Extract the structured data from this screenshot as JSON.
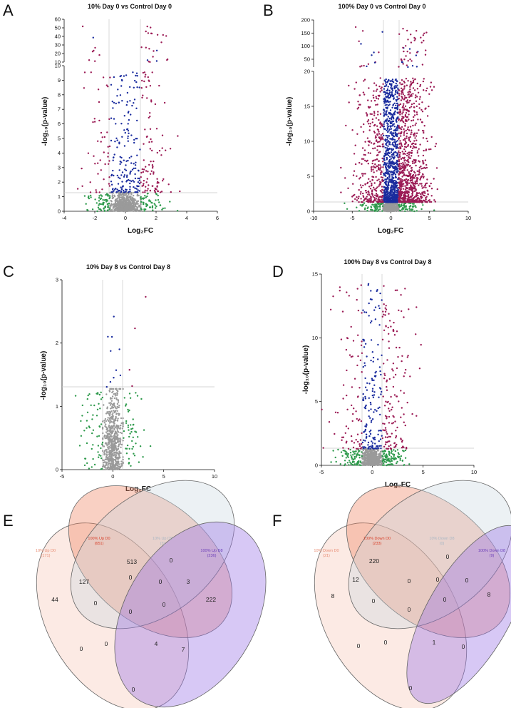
{
  "figure": {
    "panels": [
      "A",
      "B",
      "C",
      "D",
      "E",
      "F"
    ],
    "colors": {
      "up": "#9b1b55",
      "down": "#1a2c9e",
      "ns_fc": "#2e9a4c",
      "ns": "#9a9a9a"
    }
  },
  "chart_data": [
    {
      "id": "A",
      "type": "scatter",
      "title": "10% Day 0 vs Control Day 0",
      "xlabel": "Log₂FC",
      "ylabel": "-log₁₀(p-value)",
      "xlim": [
        -4,
        6
      ],
      "xticks": [
        "-4",
        "-2",
        "0",
        "2",
        "4",
        "6"
      ],
      "ylim": [
        0,
        10
      ],
      "yticks": [
        "0",
        "1",
        "2",
        "3",
        "4",
        "5",
        "6",
        "7",
        "8",
        "9",
        "10"
      ],
      "upper_ylim": [
        10,
        60
      ],
      "upper_yticks": [
        "10",
        "20",
        "30",
        "40",
        "50",
        "60"
      ],
      "fc_threshold": 1,
      "p_threshold": 1.3,
      "counts": {
        "ns": 700,
        "ns_fc": 120,
        "down": 180,
        "up": 150,
        "high": 30
      }
    },
    {
      "id": "B",
      "type": "scatter",
      "title": "100% Day 0 vs Control Day 0",
      "xlabel": "Log₂FC",
      "ylabel": "-log₁₀(p-value)",
      "xlim": [
        -10,
        10
      ],
      "xticks": [
        "-10",
        "-5",
        "0",
        "5",
        "10"
      ],
      "ylim": [
        0,
        20
      ],
      "yticks": [
        "0",
        "5",
        "10",
        "15",
        "20"
      ],
      "upper_ylim": [
        20,
        200
      ],
      "upper_yticks": [
        "50",
        "100",
        "150",
        "200"
      ],
      "fc_threshold": 1,
      "p_threshold": 1.3,
      "counts": {
        "ns": 900,
        "ns_fc": 120,
        "down": 900,
        "up": 1200,
        "high": 60
      }
    },
    {
      "id": "C",
      "type": "scatter",
      "title": "10% Day 8 vs Control Day 8",
      "xlabel": "Log₂FC",
      "ylabel": "-log₁₀(p-value)",
      "xlim": [
        -5,
        10
      ],
      "xticks": [
        "-5",
        "0",
        "5",
        "10"
      ],
      "ylim": [
        0,
        3
      ],
      "yticks": [
        "0",
        "1",
        "2",
        "3"
      ],
      "fc_threshold": 1,
      "p_threshold": 1.3,
      "counts": {
        "ns": 650,
        "ns_fc": 110,
        "down": 10,
        "up": 4
      }
    },
    {
      "id": "D",
      "type": "scatter",
      "title": "100% Day 8 vs Control Day 8",
      "xlabel": "Log₂FC",
      "ylabel": "-log₁₀(p-value)",
      "xlim": [
        -5,
        10
      ],
      "xticks": [
        "-5",
        "0",
        "5",
        "10"
      ],
      "ylim": [
        0,
        15
      ],
      "yticks": [
        "0",
        "5",
        "10",
        "15"
      ],
      "fc_threshold": 1,
      "p_threshold": 1.3,
      "counts": {
        "ns": 700,
        "ns_fc": 180,
        "down": 160,
        "up": 230
      }
    }
  ],
  "venn": [
    {
      "id": "E",
      "sets": [
        {
          "label": "10% Up D0",
          "count": "(171)",
          "color": "#f0a08a"
        },
        {
          "label": "100% Up D0",
          "count": "(651)",
          "color": "#e0553a"
        },
        {
          "label": "10% Up D8",
          "count": "(3)",
          "color": "#a9b7c4"
        },
        {
          "label": "100% Up D8",
          "count": "(236)",
          "color": "#7040c0"
        }
      ],
      "regions": [
        "44",
        "513",
        "0",
        "222",
        "127",
        "0",
        "0",
        "3",
        "0",
        "0",
        "0",
        "0",
        "0",
        "7",
        "4",
        "0"
      ]
    },
    {
      "id": "F",
      "sets": [
        {
          "label": "10% Down D0",
          "count": "(21)",
          "color": "#f0a08a"
        },
        {
          "label": "100% Down D0",
          "count": "(233)",
          "color": "#e0553a"
        },
        {
          "label": "10% Down D8",
          "count": "(0)",
          "color": "#a9b7c4"
        },
        {
          "label": "100% Down D8",
          "count": "(9)",
          "color": "#7040c0"
        }
      ],
      "regions": [
        "8",
        "220",
        "0",
        "8",
        "12",
        "0",
        "0",
        "0",
        "0",
        "0",
        "0",
        "0",
        "0",
        "0",
        "1",
        "0"
      ]
    }
  ]
}
